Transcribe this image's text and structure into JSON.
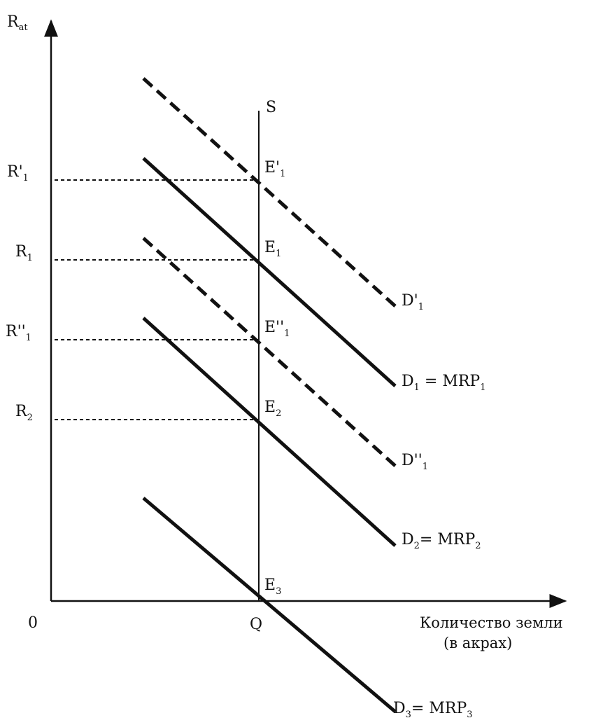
{
  "axes": {
    "y_label": "R",
    "y_label_sub": "at",
    "x_label_line1": "Количество земли",
    "x_label_line2": "(в акрах)",
    "origin": "0",
    "q_label": "Q",
    "supply_label": "S"
  },
  "rent_levels": [
    {
      "label": "R'",
      "sub": "1"
    },
    {
      "label": "R",
      "sub": "1"
    },
    {
      "label": "R''",
      "sub": "1"
    },
    {
      "label": "R",
      "sub": "2"
    }
  ],
  "equilibria": [
    {
      "label": "E'",
      "sub": "1"
    },
    {
      "label": "E",
      "sub": "1"
    },
    {
      "label": "E''",
      "sub": "1"
    },
    {
      "label": "E",
      "sub": "2"
    },
    {
      "label": "E",
      "sub": "3"
    }
  ],
  "demand_curves": [
    {
      "label": "D'",
      "sub": "1",
      "suffix": "",
      "suffix_sub": "",
      "style": "dashed"
    },
    {
      "label": "D",
      "sub": "1",
      "suffix": " = MRP",
      "suffix_sub": "1",
      "style": "solid"
    },
    {
      "label": "D''",
      "sub": "1",
      "suffix": "",
      "suffix_sub": "",
      "style": "dashed"
    },
    {
      "label": "D",
      "sub": "2",
      "suffix": "= MRP",
      "suffix_sub": "2",
      "style": "solid"
    },
    {
      "label": "D",
      "sub": "3",
      "suffix": "= MRP",
      "suffix_sub": "3",
      "style": "solid"
    }
  ]
}
